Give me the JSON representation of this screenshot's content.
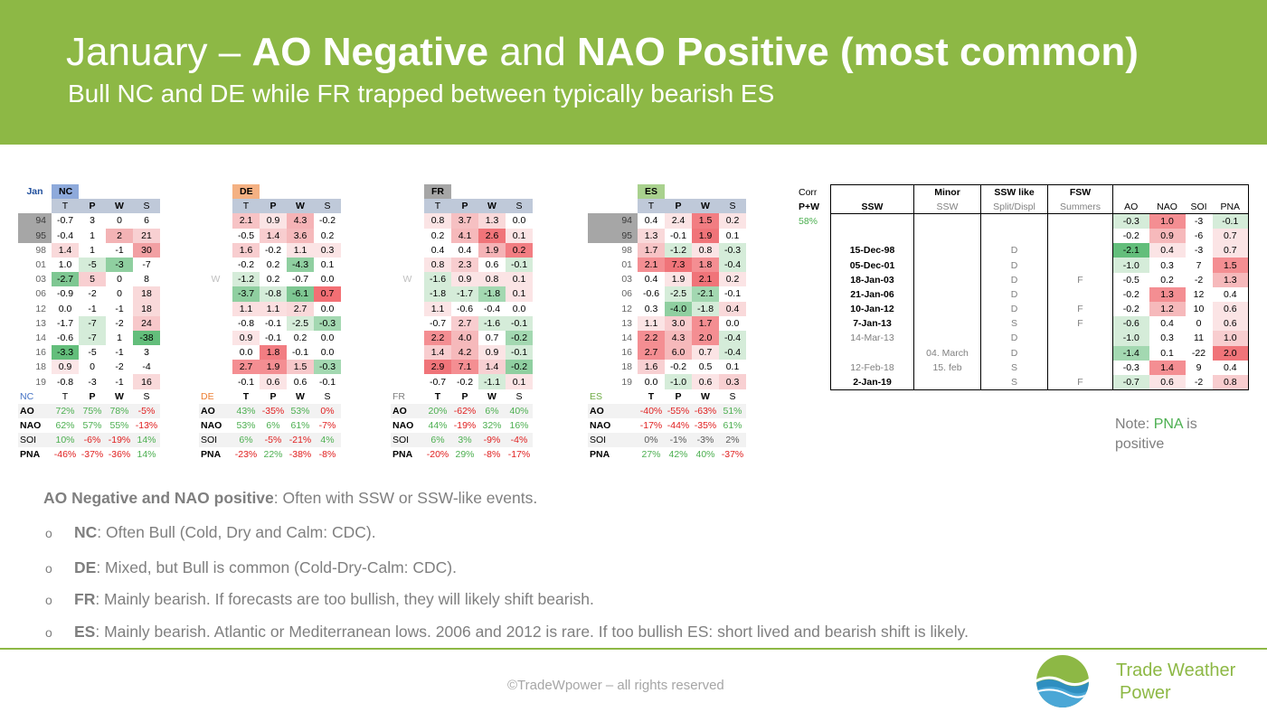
{
  "header": {
    "title_pre": "January – ",
    "title_b1": "AO Negative",
    "title_mid": " and ",
    "title_b2": "NAO Positive (most common)",
    "subtitle": "Bull NC and DE while FR trapped between typically bearish ES"
  },
  "month_label": "Jan",
  "w_label": "W",
  "regions": [
    {
      "code": "NC",
      "hdr_color": "#8eaadb",
      "cols": [
        "T",
        "P",
        "W",
        "S"
      ],
      "years": [
        "94",
        "95",
        "98",
        "01",
        "03",
        "06",
        "12",
        "13",
        "14",
        "16",
        "18",
        "19"
      ],
      "rows": [
        [
          "-0.7",
          "3",
          "0",
          "6"
        ],
        [
          "-0.4",
          "1",
          "2",
          "21"
        ],
        [
          "1.4",
          "1",
          "-1",
          "30"
        ],
        [
          "1.0",
          "-5",
          "-3",
          "-7"
        ],
        [
          "-2.7",
          "5",
          "0",
          "8"
        ],
        [
          "-0.9",
          "-2",
          "0",
          "18"
        ],
        [
          "0.0",
          "-1",
          "-1",
          "18"
        ],
        [
          "-1.7",
          "-7",
          "-2",
          "24"
        ],
        [
          "-0.6",
          "-7",
          "1",
          "-38"
        ],
        [
          "-3.3",
          "-5",
          "-1",
          "3"
        ],
        [
          "0.9",
          "0",
          "-2",
          "-4"
        ],
        [
          "-0.8",
          "-3",
          "-1",
          "16"
        ]
      ],
      "colors": [
        [
          "#fff",
          "#fff",
          "#fff",
          "#fff"
        ],
        [
          "#fff",
          "#fff",
          "#f3b3b5",
          "#f8d0d2"
        ],
        [
          "#f9d9da",
          "#fff",
          "#fff",
          "#f2a0a3"
        ],
        [
          "#fff",
          "#d5ecd9",
          "#8fcfa0",
          "#fff"
        ],
        [
          "#7ec792",
          "#f8cfd1",
          "#fff",
          "#fff"
        ],
        [
          "#fff",
          "#fff",
          "#fff",
          "#f9d9da"
        ],
        [
          "#fff",
          "#fff",
          "#fff",
          "#f9d9da"
        ],
        [
          "#fff",
          "#d5ecd9",
          "#fff",
          "#f7c8ca"
        ],
        [
          "#fff",
          "#d5ecd9",
          "#fff",
          "#63be7b"
        ],
        [
          "#63be7b",
          "#fff",
          "#fff",
          "#fff"
        ],
        [
          "#fbe6e7",
          "#fff",
          "#fff",
          "#fff"
        ],
        [
          "#fff",
          "#fff",
          "#fff",
          "#f9d9da"
        ]
      ],
      "sum_cols": [
        "T",
        "P",
        "W",
        "S"
      ],
      "sum_rows": [
        {
          "label": "AO",
          "vals": [
            "72%",
            "75%",
            "78%",
            "-5%"
          ],
          "cols": [
            "#4caf50",
            "#4caf50",
            "#4caf50",
            "#e02020"
          ]
        },
        {
          "label": "NAO",
          "vals": [
            "62%",
            "57%",
            "55%",
            "-13%"
          ],
          "cols": [
            "#4caf50",
            "#4caf50",
            "#4caf50",
            "#e02020"
          ]
        },
        {
          "label": "SOI",
          "vals": [
            "10%",
            "-6%",
            "-19%",
            "14%"
          ],
          "cols": [
            "#4caf50",
            "#e02020",
            "#e02020",
            "#4caf50"
          ]
        },
        {
          "label": "PNA",
          "vals": [
            "-46%",
            "-37%",
            "-36%",
            "14%"
          ],
          "cols": [
            "#e02020",
            "#e02020",
            "#e02020",
            "#4caf50"
          ]
        }
      ]
    },
    {
      "code": "DE",
      "hdr_color": "#f4b183",
      "cols": [
        "T",
        "P",
        "W",
        "S"
      ],
      "rows": [
        [
          "2.1",
          "0.9",
          "4.3",
          "-0.2"
        ],
        [
          "-0.5",
          "1.4",
          "3.6",
          "0.2"
        ],
        [
          "1.6",
          "-0.2",
          "1.1",
          "0.3"
        ],
        [
          "-0.2",
          "0.2",
          "-4.3",
          "0.1"
        ],
        [
          "-1.2",
          "0.2",
          "-0.7",
          "0.0"
        ],
        [
          "-3.7",
          "-0.8",
          "-6.1",
          "0.7"
        ],
        [
          "1.1",
          "1.1",
          "2.7",
          "0.0"
        ],
        [
          "-0.8",
          "-0.1",
          "-2.5",
          "-0.3"
        ],
        [
          "0.9",
          "-0.1",
          "0.2",
          "0.0"
        ],
        [
          "0.0",
          "1.8",
          "-0.1",
          "0.0"
        ],
        [
          "2.7",
          "1.9",
          "1.5",
          "-0.3"
        ],
        [
          "-0.1",
          "0.6",
          "0.6",
          "-0.1"
        ]
      ],
      "colors": [
        [
          "#f7c3c5",
          "#fbe4e5",
          "#f5b3b6",
          "#fff"
        ],
        [
          "#fff",
          "#f8cdcf",
          "#f5b9bb",
          "#fff"
        ],
        [
          "#f8cdcf",
          "#fff",
          "#fbe4e5",
          "#fbe4e5"
        ],
        [
          "#fff",
          "#fff",
          "#8fcfa0",
          "#fff"
        ],
        [
          "#d5ecd9",
          "#fff",
          "#fff",
          "#fff"
        ],
        [
          "#8fcfa0",
          "#d5ecd9",
          "#7ec792",
          "#f36f74"
        ],
        [
          "#fbdfe0",
          "#fbdfe0",
          "#f9d9da",
          "#fff"
        ],
        [
          "#fff",
          "#fff",
          "#d5ecd9",
          "#a3d8b1"
        ],
        [
          "#fbe4e5",
          "#fff",
          "#fff",
          "#fff"
        ],
        [
          "#fff",
          "#f27d82",
          "#fff",
          "#fff"
        ],
        [
          "#f48e92",
          "#f48e92",
          "#f7c8ca",
          "#a3d8b1"
        ],
        [
          "#fff",
          "#fbe4e5",
          "#fff",
          "#fff"
        ]
      ],
      "sum_rows": [
        {
          "label": "AO",
          "vals": [
            "43%",
            "-35%",
            "53%",
            "0%"
          ],
          "cols": [
            "#4caf50",
            "#e02020",
            "#4caf50",
            "#e02020"
          ]
        },
        {
          "label": "NAO",
          "vals": [
            "53%",
            "6%",
            "61%",
            "-7%"
          ],
          "cols": [
            "#4caf50",
            "#4caf50",
            "#4caf50",
            "#e02020"
          ]
        },
        {
          "label": "SOI",
          "vals": [
            "6%",
            "-5%",
            "-21%",
            "4%"
          ],
          "cols": [
            "#4caf50",
            "#e02020",
            "#e02020",
            "#4caf50"
          ]
        },
        {
          "label": "PNA",
          "vals": [
            "-23%",
            "22%",
            "-38%",
            "-8%"
          ],
          "cols": [
            "#e02020",
            "#4caf50",
            "#e02020",
            "#e02020"
          ]
        }
      ]
    },
    {
      "code": "FR",
      "hdr_color": "#a6a6a6",
      "cols": [
        "T",
        "P",
        "W",
        "S"
      ],
      "rows": [
        [
          "0.8",
          "3.7",
          "1.3",
          "0.0"
        ],
        [
          "0.2",
          "4.1",
          "2.6",
          "0.1"
        ],
        [
          "0.4",
          "0.4",
          "1.9",
          "0.2"
        ],
        [
          "0.8",
          "2.3",
          "0.6",
          "-0.1"
        ],
        [
          "-1.6",
          "0.9",
          "0.8",
          "0.1"
        ],
        [
          "-1.8",
          "-1.7",
          "-1.8",
          "0.1"
        ],
        [
          "1.1",
          "-0.6",
          "-0.4",
          "0.0"
        ],
        [
          "-0.7",
          "2.7",
          "-1.6",
          "-0.1"
        ],
        [
          "2.2",
          "4.0",
          "0.7",
          "-0.2"
        ],
        [
          "1.4",
          "4.2",
          "0.9",
          "-0.1"
        ],
        [
          "2.9",
          "7.1",
          "1.4",
          "-0.2"
        ],
        [
          "-0.7",
          "-0.2",
          "-1.1",
          "0.1"
        ]
      ],
      "colors": [
        [
          "#fbe4e5",
          "#f6c0c2",
          "#f9d9da",
          "#fff"
        ],
        [
          "#fff",
          "#f6b9bb",
          "#f07479",
          "#fbe4e5"
        ],
        [
          "#fff",
          "#fff",
          "#f5b3b6",
          "#f27d82"
        ],
        [
          "#fbe4e5",
          "#f8cdcf",
          "#fff",
          "#d5ecd9"
        ],
        [
          "#d5ecd9",
          "#fbe4e5",
          "#fbe4e5",
          "#fbe4e5"
        ],
        [
          "#d5ecd9",
          "#d5ecd9",
          "#a3d8b1",
          "#fbe4e5"
        ],
        [
          "#fbe4e5",
          "#fff",
          "#fff",
          "#fff"
        ],
        [
          "#fff",
          "#f8cdcf",
          "#d5ecd9",
          "#d5ecd9"
        ],
        [
          "#f48e92",
          "#f6b9bb",
          "#fff",
          "#a3d8b1"
        ],
        [
          "#f8cdcf",
          "#f6b9bb",
          "#fbe4e5",
          "#d5ecd9"
        ],
        [
          "#f07479",
          "#f48e92",
          "#f8d0d2",
          "#8fcfa0"
        ],
        [
          "#fff",
          "#fff",
          "#d5ecd9",
          "#fbe4e5"
        ]
      ],
      "sum_rows": [
        {
          "label": "AO",
          "vals": [
            "20%",
            "-62%",
            "6%",
            "40%"
          ],
          "cols": [
            "#4caf50",
            "#e02020",
            "#4caf50",
            "#4caf50"
          ]
        },
        {
          "label": "NAO",
          "vals": [
            "44%",
            "-19%",
            "32%",
            "16%"
          ],
          "cols": [
            "#4caf50",
            "#e02020",
            "#4caf50",
            "#4caf50"
          ]
        },
        {
          "label": "SOI",
          "vals": [
            "6%",
            "3%",
            "-9%",
            "-4%"
          ],
          "cols": [
            "#4caf50",
            "#4caf50",
            "#e02020",
            "#e02020"
          ]
        },
        {
          "label": "PNA",
          "vals": [
            "-20%",
            "29%",
            "-8%",
            "-17%"
          ],
          "cols": [
            "#e02020",
            "#4caf50",
            "#e02020",
            "#e02020"
          ]
        }
      ]
    },
    {
      "code": "ES",
      "hdr_color": "#a9d18e",
      "cols": [
        "T",
        "P",
        "W",
        "S"
      ],
      "rows": [
        [
          "0.4",
          "2.4",
          "1.5",
          "0.2"
        ],
        [
          "1.3",
          "-0.1",
          "1.9",
          "0.1"
        ],
        [
          "1.7",
          "-1.2",
          "0.8",
          "-0.3"
        ],
        [
          "2.1",
          "7.3",
          "1.8",
          "-0.4"
        ],
        [
          "0.4",
          "1.9",
          "2.1",
          "0.2"
        ],
        [
          "-0.6",
          "-2.5",
          "-2.1",
          "-0.1"
        ],
        [
          "0.3",
          "-4.0",
          "-1.8",
          "0.4"
        ],
        [
          "1.1",
          "3.0",
          "1.7",
          "0.0"
        ],
        [
          "2.2",
          "4.3",
          "2.0",
          "-0.4"
        ],
        [
          "2.7",
          "6.0",
          "0.7",
          "-0.4"
        ],
        [
          "1.6",
          "-0.2",
          "0.5",
          "0.1"
        ],
        [
          "0.0",
          "-1.0",
          "0.6",
          "0.3"
        ]
      ],
      "colors": [
        [
          "#fff",
          "#fbe4e5",
          "#f27d82",
          "#fbe4e5"
        ],
        [
          "#f9d9da",
          "#fff",
          "#f07479",
          "#fff"
        ],
        [
          "#f7c3c5",
          "#d5ecd9",
          "#fbe4e5",
          "#d5ecd9"
        ],
        [
          "#f48e92",
          "#f07479",
          "#f48e92",
          "#d5ecd9"
        ],
        [
          "#fff",
          "#fbe4e5",
          "#f07479",
          "#fbe4e5"
        ],
        [
          "#fff",
          "#d5ecd9",
          "#a3d8b1",
          "#fff"
        ],
        [
          "#fff",
          "#8fcfa0",
          "#d5ecd9",
          "#f9d9da"
        ],
        [
          "#fbe4e5",
          "#f8cdcf",
          "#f48e92",
          "#fff"
        ],
        [
          "#f48e92",
          "#f6b9bb",
          "#f48e92",
          "#d5ecd9"
        ],
        [
          "#f48e92",
          "#f6b9bb",
          "#fbe4e5",
          "#d5ecd9"
        ],
        [
          "#f8d0d2",
          "#fff",
          "#fff",
          "#fff"
        ],
        [
          "#fff",
          "#d5ecd9",
          "#fbe4e5",
          "#f8d0d2"
        ]
      ],
      "sum_rows": [
        {
          "label": "AO",
          "vals": [
            "-40%",
            "-55%",
            "-63%",
            "51%"
          ],
          "cols": [
            "#e02020",
            "#e02020",
            "#e02020",
            "#4caf50"
          ]
        },
        {
          "label": "NAO",
          "vals": [
            "-17%",
            "-44%",
            "-35%",
            "61%"
          ],
          "cols": [
            "#e02020",
            "#e02020",
            "#e02020",
            "#4caf50"
          ]
        },
        {
          "label": "SOI",
          "vals": [
            "0%",
            "-1%",
            "-3%",
            "2%"
          ],
          "cols": [
            "#595959",
            "#595959",
            "#595959",
            "#595959"
          ]
        },
        {
          "label": "PNA",
          "vals": [
            "27%",
            "42%",
            "40%",
            "-37%"
          ],
          "cols": [
            "#4caf50",
            "#4caf50",
            "#4caf50",
            "#e02020"
          ]
        }
      ]
    }
  ],
  "corr": {
    "label1": "Corr",
    "label2": "P+W",
    "value": "58%"
  },
  "ssw": {
    "head1": [
      "",
      "Minor",
      "SSW like",
      "FSW"
    ],
    "head2": [
      "SSW",
      "SSW",
      "Split/Displ",
      "Summers"
    ],
    "idx_cols": [
      "AO",
      "NAO",
      "SOI",
      "PNA"
    ],
    "rows": [
      {
        "ssw": "",
        "minor": "",
        "like": "",
        "fsw": "",
        "idx": [
          "-0.3",
          "1.0",
          "-3",
          "-0.1"
        ]
      },
      {
        "ssw": "",
        "minor": "",
        "like": "",
        "fsw": "",
        "idx": [
          "-0.2",
          "0.9",
          "-6",
          "0.7"
        ]
      },
      {
        "ssw": "15-Dec-98",
        "minor": "",
        "like": "D",
        "fsw": "",
        "idx": [
          "-2.1",
          "0.4",
          "-3",
          "0.7"
        ]
      },
      {
        "ssw": "05-Dec-01",
        "minor": "",
        "like": "D",
        "fsw": "",
        "idx": [
          "-1.0",
          "0.3",
          "7",
          "1.5"
        ]
      },
      {
        "ssw": "18-Jan-03",
        "minor": "",
        "like": "D",
        "fsw": "F",
        "idx": [
          "-0.5",
          "0.2",
          "-2",
          "1.3"
        ]
      },
      {
        "ssw": "21-Jan-06",
        "minor": "",
        "like": "D",
        "fsw": "",
        "idx": [
          "-0.2",
          "1.3",
          "12",
          "0.4"
        ]
      },
      {
        "ssw": "10-Jan-12",
        "minor": "",
        "like": "D",
        "fsw": "F",
        "idx": [
          "-0.2",
          "1.2",
          "10",
          "0.6"
        ]
      },
      {
        "ssw": "7-Jan-13",
        "minor": "",
        "like": "S",
        "fsw": "F",
        "idx": [
          "-0.6",
          "0.4",
          "0",
          "0.6"
        ]
      },
      {
        "ssw": "14-Mar-13",
        "minor": "",
        "like": "D",
        "fsw": "",
        "idx": [
          "-1.0",
          "0.3",
          "11",
          "1.0"
        ]
      },
      {
        "ssw": "",
        "minor": "04. March",
        "like": "D",
        "fsw": "",
        "idx": [
          "-1.4",
          "0.1",
          "-22",
          "2.0"
        ]
      },
      {
        "ssw": "12-Feb-18",
        "minor": "15. feb",
        "like": "S",
        "fsw": "",
        "idx": [
          "-0.3",
          "1.4",
          "9",
          "0.4"
        ]
      },
      {
        "ssw": "2-Jan-19",
        "minor": "",
        "like": "S",
        "fsw": "F",
        "idx": [
          "-0.7",
          "0.6",
          "-2",
          "0.8"
        ]
      }
    ],
    "bold_rows": [
      2,
      3,
      4,
      5,
      6,
      7,
      11
    ],
    "idx_colors": [
      [
        "#d5ecd9",
        "#f48e92",
        "#fff",
        "#d5ecd9"
      ],
      [
        "#fff",
        "#f6b9bb",
        "#fff",
        "#fbe4e5"
      ],
      [
        "#63be7b",
        "#fbe4e5",
        "#fff",
        "#fbe4e5"
      ],
      [
        "#d5ecd9",
        "#fff",
        "#fff",
        "#f48e92"
      ],
      [
        "#fff",
        "#fff",
        "#fff",
        "#f6b9bb"
      ],
      [
        "#fff",
        "#f48e92",
        "#fff",
        "#fff"
      ],
      [
        "#fff",
        "#f6b9bb",
        "#fff",
        "#fbe4e5"
      ],
      [
        "#d5ecd9",
        "#fff",
        "#fff",
        "#fbe4e5"
      ],
      [
        "#d5ecd9",
        "#fff",
        "#fff",
        "#f8cdcf"
      ],
      [
        "#a3d8b1",
        "#fff",
        "#fff",
        "#f07479"
      ],
      [
        "#fff",
        "#f48e92",
        "#fff",
        "#fff"
      ],
      [
        "#d5ecd9",
        "#fbe4e5",
        "#fff",
        "#f8cdcf"
      ]
    ]
  },
  "note": {
    "pre": "Note: ",
    "green": "PNA",
    "post": " is positive"
  },
  "bullets": {
    "head_b": "AO Negative and NAO positive",
    "head_rest": ": Often with SSW or SSW-like events.",
    "items": [
      {
        "b": "NC",
        "t": ": Often Bull (Cold, Dry and Calm: CDC)."
      },
      {
        "b": "DE",
        "t": ": Mixed, but Bull is common (Cold-Dry-Calm: CDC)."
      },
      {
        "b": "FR",
        "t": ": Mainly bearish. If forecasts are too bullish, they will likely shift bearish."
      },
      {
        "b": "ES",
        "t": ": Mainly bearish. Atlantic or Mediterranean lows. 2006 and 2012 is rare. If too bullish ES: short lived and bearish shift is likely."
      }
    ],
    "bullet_glyph": "o"
  },
  "footer": "©TradeWpower – all rights reserved",
  "brand": {
    "line1": "Trade Weather",
    "line2": "Power"
  },
  "colors": {
    "header_green": "#8db845",
    "accent_green": "#4caf50"
  }
}
